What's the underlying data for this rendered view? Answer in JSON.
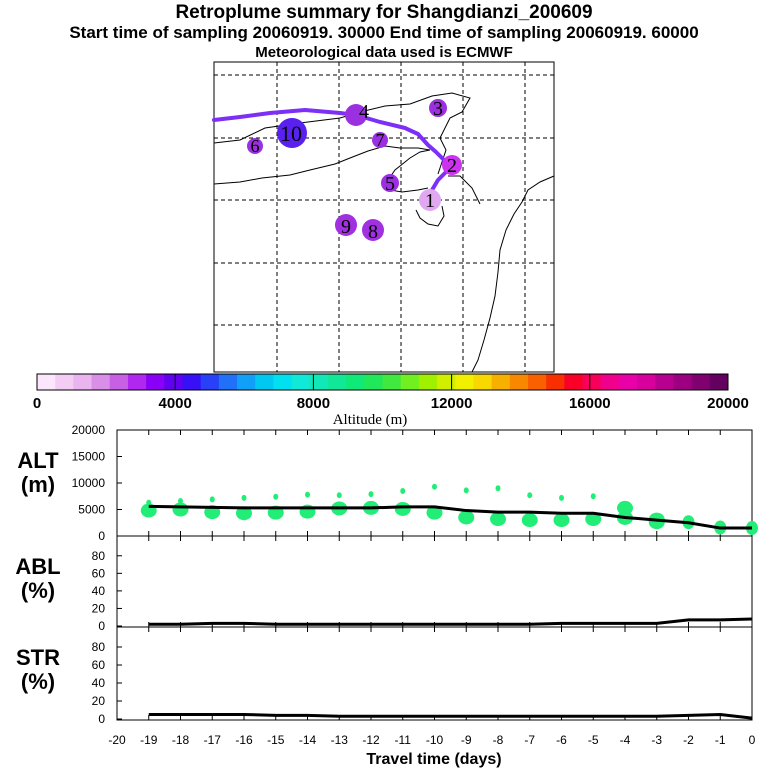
{
  "header": {
    "title": "Retroplume summary for Shangdianzi_200609",
    "times": "Start time of sampling 20060919. 30000     End time of sampling 20060919. 60000",
    "met": "Meteorological data used is ECMWF"
  },
  "map": {
    "track_color": "#7b2ff7",
    "clusters": [
      {
        "label": "1",
        "color": "#e0a8f0"
      },
      {
        "label": "2",
        "color": "#cc33ee"
      },
      {
        "label": "3",
        "color": "#9b30e0"
      },
      {
        "label": "4",
        "color": "#9b30e0"
      },
      {
        "label": "5",
        "color": "#9b30e0"
      },
      {
        "label": "6",
        "color": "#9b30e0"
      },
      {
        "label": "7",
        "color": "#9b30e0"
      },
      {
        "label": "8",
        "color": "#a030e0"
      },
      {
        "label": "9",
        "color": "#a030e0"
      },
      {
        "label": "10",
        "color": "#5a20f0"
      }
    ]
  },
  "colorbar": {
    "label": "Altitude (m)",
    "ticks": [
      "0",
      "4000",
      "8000",
      "12000",
      "16000",
      "20000"
    ],
    "colors": [
      "#fbe6fb",
      "#f4cdf4",
      "#eab4ee",
      "#d98ee8",
      "#c860e6",
      "#b028f0",
      "#8a00f6",
      "#6200f0",
      "#3810f8",
      "#2840f8",
      "#2070f8",
      "#10a0f8",
      "#00c8f0",
      "#00e0f0",
      "#10e8d8",
      "#10e8b8",
      "#10e898",
      "#10e878",
      "#20e858",
      "#40e840",
      "#70f020",
      "#a0f000",
      "#d0f000",
      "#f0f000",
      "#f8d800",
      "#f8b000",
      "#f88800",
      "#f86000",
      "#f83000",
      "#f80028",
      "#f8005a",
      "#f0008c",
      "#e800a8",
      "#d8009c",
      "#b80090",
      "#9c0080",
      "#800070",
      "#640060"
    ]
  },
  "chart_data": [
    {
      "type": "line",
      "panel": "ALT",
      "ylabel": "ALT",
      "yunit": "(m)",
      "ylim": [
        0,
        20000
      ],
      "yticks": [
        "20000",
        "15000",
        "10000",
        "5000",
        "0"
      ],
      "x": [
        -19,
        -18,
        -17,
        -16,
        -15,
        -14,
        -13,
        -12,
        -11,
        -10,
        -9,
        -8,
        -7,
        -6,
        -5,
        -4,
        -3,
        -2,
        -1,
        0
      ],
      "values": [
        5600,
        5500,
        5400,
        5300,
        5300,
        5300,
        5300,
        5300,
        5500,
        5500,
        4800,
        4500,
        4500,
        4300,
        4300,
        3500,
        3000,
        2500,
        1500,
        1500
      ],
      "scatter": [
        [
          -19,
          6300
        ],
        [
          -19,
          4800
        ],
        [
          -18,
          6600
        ],
        [
          -18,
          5000
        ],
        [
          -17,
          6900
        ],
        [
          -17,
          4500
        ],
        [
          -16,
          7200
        ],
        [
          -16,
          4300
        ],
        [
          -15,
          7400
        ],
        [
          -15,
          4400
        ],
        [
          -14,
          7800
        ],
        [
          -14,
          4600
        ],
        [
          -13,
          7700
        ],
        [
          -13,
          5200
        ],
        [
          -12,
          7900
        ],
        [
          -12,
          5300
        ],
        [
          -11,
          8500
        ],
        [
          -11,
          5100
        ],
        [
          -10,
          9300
        ],
        [
          -10,
          4400
        ],
        [
          -9,
          8600
        ],
        [
          -9,
          3500
        ],
        [
          -8,
          9000
        ],
        [
          -8,
          3200
        ],
        [
          -7,
          7700
        ],
        [
          -7,
          3000
        ],
        [
          -6,
          7200
        ],
        [
          -6,
          3000
        ],
        [
          -5,
          7500
        ],
        [
          -5,
          3200
        ],
        [
          -4,
          5300
        ],
        [
          -4,
          3400
        ],
        [
          -3,
          3100
        ],
        [
          -3,
          2600
        ],
        [
          -2,
          2600
        ],
        [
          -1,
          1600
        ],
        [
          0,
          1500
        ]
      ],
      "dot_color": "#22ee77"
    },
    {
      "type": "line",
      "panel": "ABL",
      "ylabel": "ABL",
      "yunit": "(%)",
      "ylim": [
        0,
        100
      ],
      "yticks": [
        "80",
        "60",
        "40",
        "20",
        "0"
      ],
      "x": [
        -19,
        -18,
        -17,
        -16,
        -15,
        -14,
        -13,
        -12,
        -11,
        -10,
        -9,
        -8,
        -7,
        -6,
        -5,
        -4,
        -3,
        -2,
        -1,
        0
      ],
      "values": [
        2,
        2,
        3,
        3,
        2,
        2,
        2,
        2,
        2,
        2,
        2,
        2,
        2,
        3,
        3,
        3,
        3,
        7,
        7,
        8
      ]
    },
    {
      "type": "line",
      "panel": "STR",
      "ylabel": "STR",
      "yunit": "(%)",
      "ylim": [
        0,
        100
      ],
      "yticks": [
        "80",
        "60",
        "40",
        "20",
        "0"
      ],
      "xlabel": "Travel time (days)",
      "xticks": [
        "-20",
        "-19",
        "-18",
        "-17",
        "-16",
        "-15",
        "-14",
        "-13",
        "-12",
        "-11",
        "-10",
        "-9",
        "-8",
        "-7",
        "-6",
        "-5",
        "-4",
        "-3",
        "-2",
        "-1",
        "0"
      ],
      "x": [
        -19,
        -18,
        -17,
        -16,
        -15,
        -14,
        -13,
        -12,
        -11,
        -10,
        -9,
        -8,
        -7,
        -6,
        -5,
        -4,
        -3,
        -2,
        -1,
        0
      ],
      "values": [
        5,
        5,
        5,
        5,
        4,
        4,
        3,
        3,
        3,
        3,
        3,
        3,
        3,
        3,
        3,
        3,
        3,
        4,
        5,
        1
      ]
    }
  ]
}
